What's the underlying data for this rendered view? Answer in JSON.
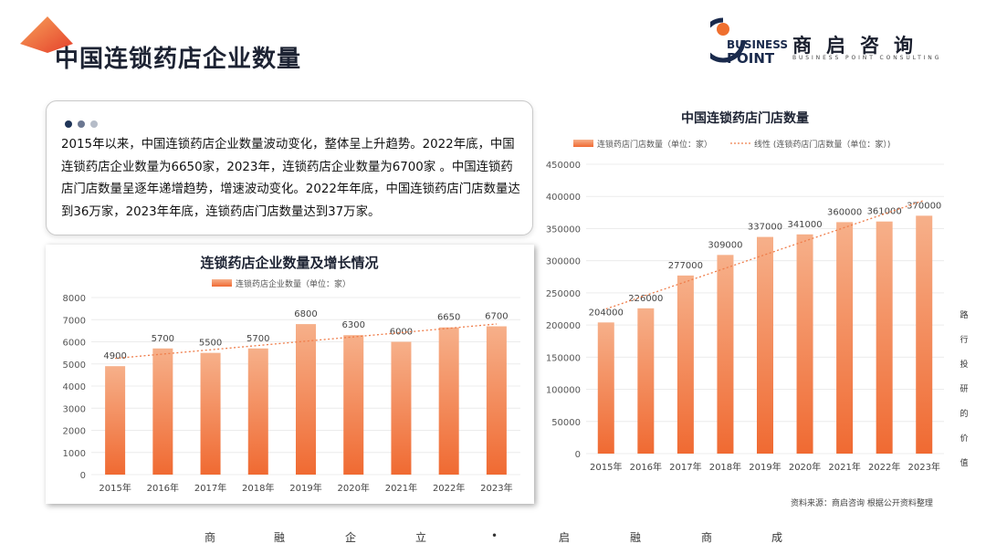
{
  "page": {
    "title": "中国连锁药店企业数量",
    "summary": "2015年以来，中国连锁药店企业数量波动变化，整体呈上升趋势。2022年底，中国连锁药店企业数量为6650家，2023年，连锁药店企业数量为6700家 。中国连锁药店门店数量呈逐年递增趋势，增速波动变化。2022年年底，中国连锁药店门店数量达到36万家，2023年年底，连锁药店门店数量达到37万家。",
    "source": "资料来源：商启咨询 根据公开资料整理",
    "side_text": [
      "路",
      "行",
      "投",
      "研",
      "的",
      "价",
      "值"
    ],
    "footer": [
      "商",
      "融",
      "企",
      "立",
      "•",
      "启",
      "融",
      "商",
      "成"
    ]
  },
  "logo": {
    "word1": "BUSINESS",
    "word2": "POINT",
    "cn": "商启咨询",
    "en": "BUSINESS POINT CONSULTING"
  },
  "colors": {
    "bar_top": "#f6b08a",
    "bar_bottom": "#f06a32",
    "trend": "#ef7d4a",
    "title_dark": "#1d2333",
    "dot1": "#1f3558",
    "dot2": "#6b7791",
    "dot3": "#b5bcc8"
  },
  "chart_data": [
    {
      "type": "bar",
      "title": "连锁药店企业数量及增长情况",
      "legend": "连锁药店企业数量（单位：家）",
      "categories": [
        "2015年",
        "2016年",
        "2017年",
        "2018年",
        "2019年",
        "2020年",
        "2021年",
        "2022年",
        "2023年"
      ],
      "values": [
        4900,
        5700,
        5500,
        5700,
        6800,
        6300,
        6000,
        6650,
        6700
      ],
      "ylim": [
        0,
        8000
      ],
      "yticks": [
        0,
        1000,
        2000,
        3000,
        4000,
        5000,
        6000,
        7000,
        8000
      ],
      "trendline": "linear",
      "legend_position": "top"
    },
    {
      "type": "bar",
      "title": "中国连锁药店门店数量",
      "legend": "连锁药店门店数量（单位：家）",
      "trend_legend": "线性 (连锁药店门店数量（单位：家）)",
      "categories": [
        "2015年",
        "2016年",
        "2017年",
        "2018年",
        "2019年",
        "2020年",
        "2021年",
        "2022年",
        "2023年"
      ],
      "values": [
        204000,
        226000,
        277000,
        309000,
        337000,
        341000,
        360000,
        361000,
        370000
      ],
      "ylim": [
        0,
        450000
      ],
      "yticks": [
        0,
        50000,
        100000,
        150000,
        200000,
        250000,
        300000,
        350000,
        400000,
        450000
      ],
      "trendline": "linear",
      "legend_position": "top"
    }
  ]
}
